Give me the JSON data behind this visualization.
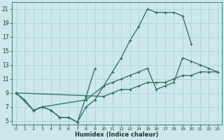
{
  "xlabel": "Humidex (Indice chaleur)",
  "bg_color": "#cce8ea",
  "grid_color": "#b0d4d8",
  "line_color": "#2d6b5e",
  "xlim": [
    -0.5,
    23.5
  ],
  "ylim": [
    4.5,
    22
  ],
  "xticks": [
    0,
    1,
    2,
    3,
    4,
    5,
    6,
    7,
    8,
    9,
    10,
    11,
    12,
    13,
    14,
    15,
    16,
    17,
    18,
    19,
    20,
    21,
    22,
    23
  ],
  "yticks": [
    5,
    7,
    9,
    11,
    13,
    15,
    17,
    19,
    21
  ],
  "line1": {
    "x": [
      0,
      1,
      2,
      3,
      4,
      5,
      6,
      7,
      8,
      9,
      10,
      11,
      12,
      13,
      14,
      15,
      16,
      17,
      18,
      19,
      20
    ],
    "y": [
      9,
      8,
      6.5,
      7,
      6.5,
      5.5,
      5.5,
      4.8,
      7,
      8,
      10,
      12,
      14,
      16.5,
      18.5,
      21,
      20.5,
      20.5,
      20.5,
      20,
      16
    ]
  },
  "line2": {
    "x": [
      2,
      3,
      4,
      5,
      6,
      7,
      8,
      9
    ],
    "y": [
      6.5,
      7,
      6.5,
      5.5,
      5.5,
      4.8,
      8.5,
      12.5
    ]
  },
  "line3": {
    "x": [
      0,
      2,
      3,
      8,
      10,
      11,
      12,
      13,
      14,
      15,
      16,
      17,
      18,
      19,
      20,
      21,
      22,
      23
    ],
    "y": [
      9,
      6.5,
      7,
      8,
      10,
      10.5,
      11,
      11.5,
      12,
      12.5,
      9.5,
      10,
      10.5,
      14,
      13.5,
      13,
      12.5,
      12
    ]
  },
  "line4": {
    "x": [
      0,
      10,
      11,
      12,
      13,
      14,
      15,
      16,
      17,
      18,
      19,
      20,
      21,
      22,
      23
    ],
    "y": [
      9,
      8.5,
      9,
      9.5,
      9.5,
      10,
      10.5,
      10.5,
      10.5,
      11,
      11.5,
      11.5,
      12,
      12,
      12
    ]
  }
}
